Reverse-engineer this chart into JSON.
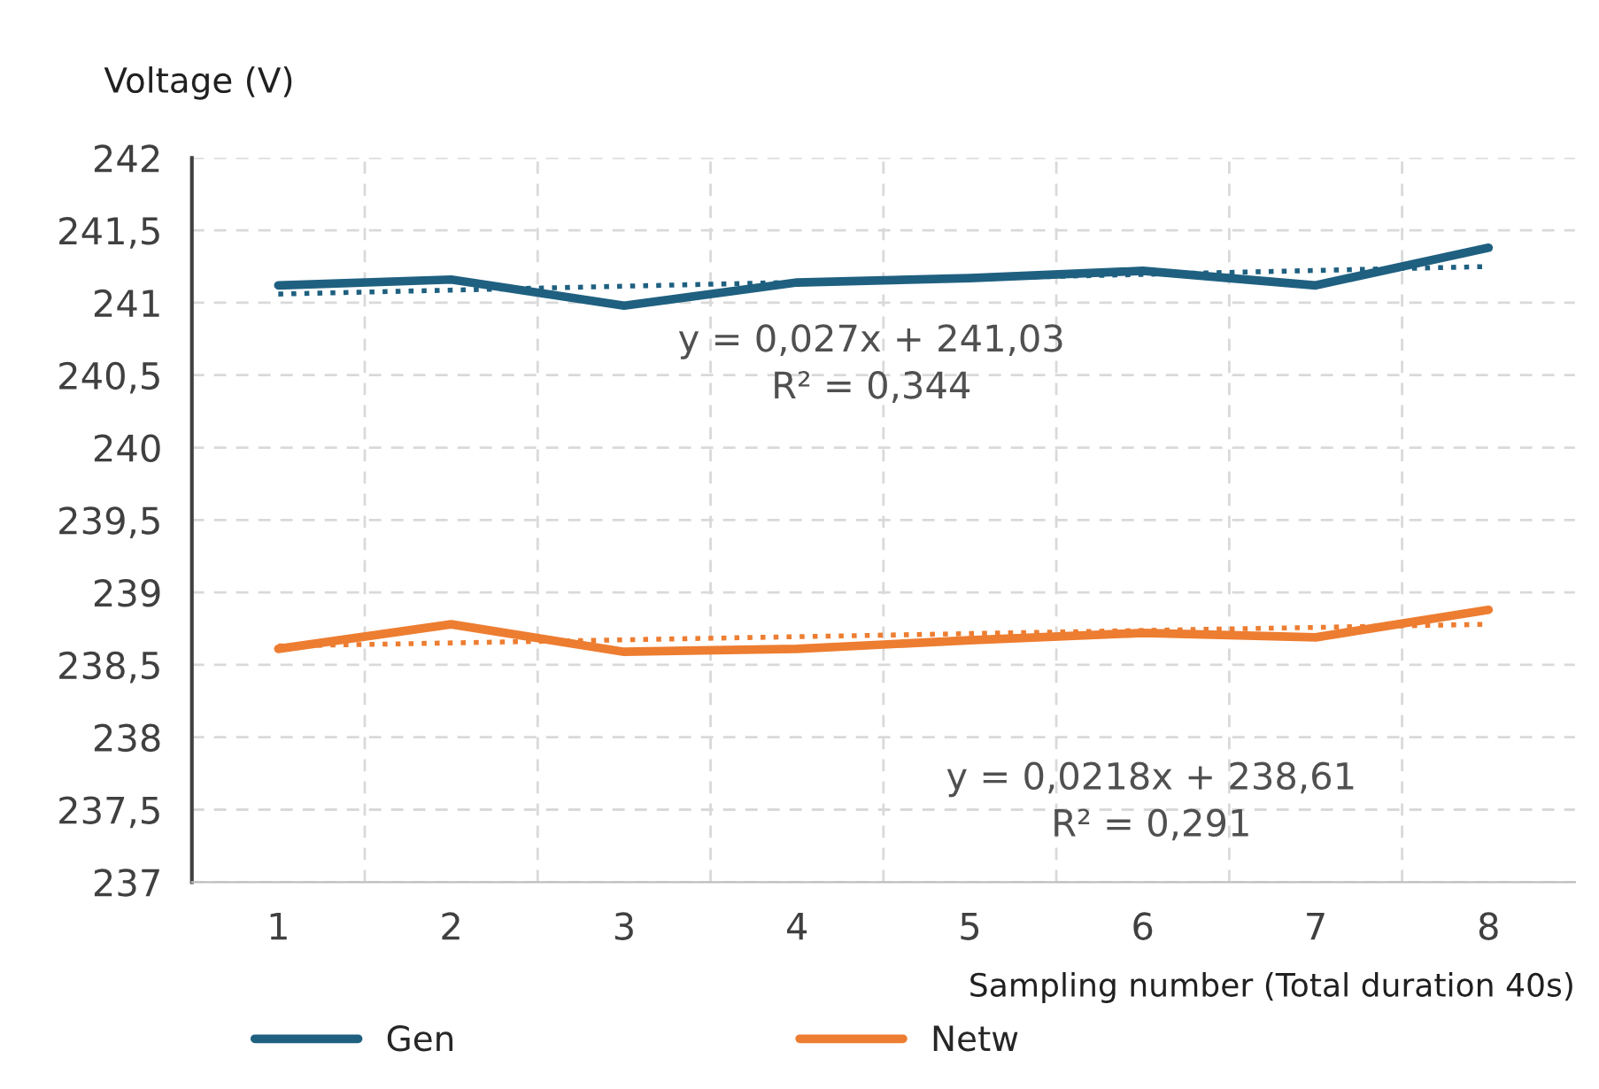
{
  "chart_data": {
    "type": "line",
    "xlabel": "Sampling number (Total duration 40s)",
    "ylabel": "Voltage (V)",
    "categories": [
      "1",
      "2",
      "3",
      "4",
      "5",
      "6",
      "7",
      "8"
    ],
    "series": [
      {
        "name": "Gen",
        "color": "#1f6080",
        "values": [
          241.12,
          241.16,
          240.98,
          241.14,
          241.17,
          241.22,
          241.12,
          241.38
        ]
      },
      {
        "name": "Netw",
        "color": "#ed7d31",
        "values": [
          238.61,
          238.78,
          238.59,
          238.61,
          238.67,
          238.72,
          238.69,
          238.88
        ]
      },
      {
        "color": "#1f6080",
        "line_style": "dotted",
        "x": [
          "1",
          "8"
        ],
        "values": [
          241.06,
          241.25
        ]
      },
      {
        "color": "#ed7d31",
        "line_style": "dotted",
        "x": [
          "1",
          "8"
        ],
        "values": [
          238.63,
          238.78
        ]
      }
    ],
    "ylim": [
      237,
      242
    ],
    "yticks": [
      237,
      {
        "value": 237.5,
        "label": "237,5"
      },
      238,
      {
        "value": 238.5,
        "label": "238,5"
      },
      239,
      {
        "value": 239.5,
        "label": "239,5"
      },
      240,
      {
        "value": 240.5,
        "label": "240,5"
      },
      241,
      {
        "value": 241.5,
        "label": "241,5"
      },
      242
    ],
    "grid": true,
    "legend": "bottom",
    "annotations": [
      "y = 0,027x + 241,03\nR² = 0,344",
      "y = 0,0218x + 238,61\nR² = 0,291"
    ]
  }
}
